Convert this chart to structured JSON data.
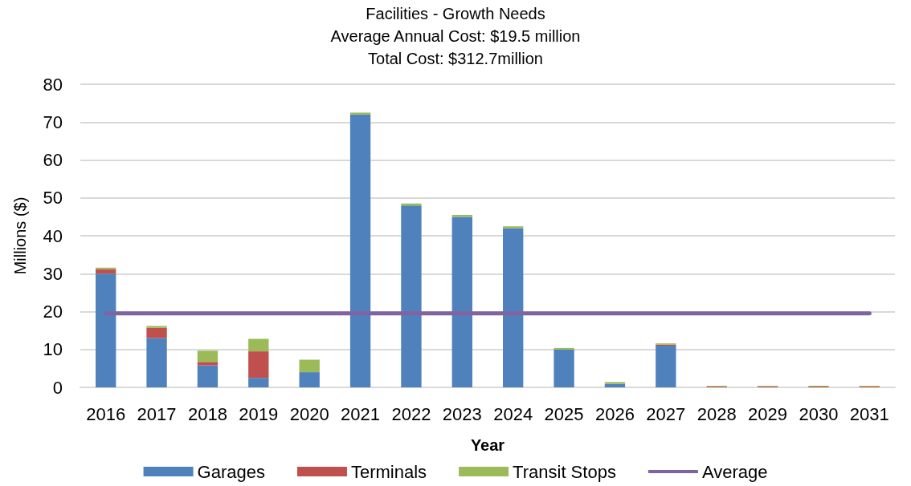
{
  "chart_data": {
    "type": "bar",
    "title": "Facilities - Growth Needs",
    "subtitle": "Average Annual Cost: $19.5 million\nTotal Cost: $312.7million",
    "xlabel": "Year",
    "ylabel": "Millions ($)",
    "categories": [
      "2016",
      "2017",
      "2018",
      "2019",
      "2020",
      "2021",
      "2022",
      "2023",
      "2024",
      "2025",
      "2026",
      "2027",
      "2028",
      "2029",
      "2030",
      "2031"
    ],
    "stacked": true,
    "ylim": [
      0,
      80
    ],
    "yticks": [
      0,
      10,
      20,
      30,
      40,
      50,
      60,
      70,
      80
    ],
    "grid": "y",
    "legend": "bottom",
    "series": [
      {
        "name": "Garages",
        "color": "#4f81bd",
        "values": [
          30,
          13,
          5.8,
          2.5,
          4,
          72,
          48,
          45,
          42,
          10,
          0.9,
          11,
          0,
          0,
          0,
          0
        ]
      },
      {
        "name": "Terminals",
        "color": "#c0504d",
        "values": [
          1.2,
          2.7,
          0.9,
          7,
          0,
          0,
          0,
          0,
          0,
          0,
          0,
          0.3,
          0.2,
          0.2,
          0.2,
          0.2
        ]
      },
      {
        "name": "Transit Stops",
        "color": "#9bbb59",
        "values": [
          0.4,
          0.5,
          3,
          3.3,
          3.3,
          0.5,
          0.5,
          0.5,
          0.5,
          0.4,
          0.5,
          0.3,
          0.2,
          0.2,
          0.2,
          0.2
        ]
      },
      {
        "name": "Average",
        "type": "line",
        "color": "#8064a2",
        "marker": "none",
        "values": [
          19.5,
          19.5,
          19.5,
          19.5,
          19.5,
          19.5,
          19.5,
          19.5,
          19.5,
          19.5,
          19.5,
          19.5,
          19.5,
          19.5,
          19.5,
          19.5
        ]
      }
    ]
  }
}
